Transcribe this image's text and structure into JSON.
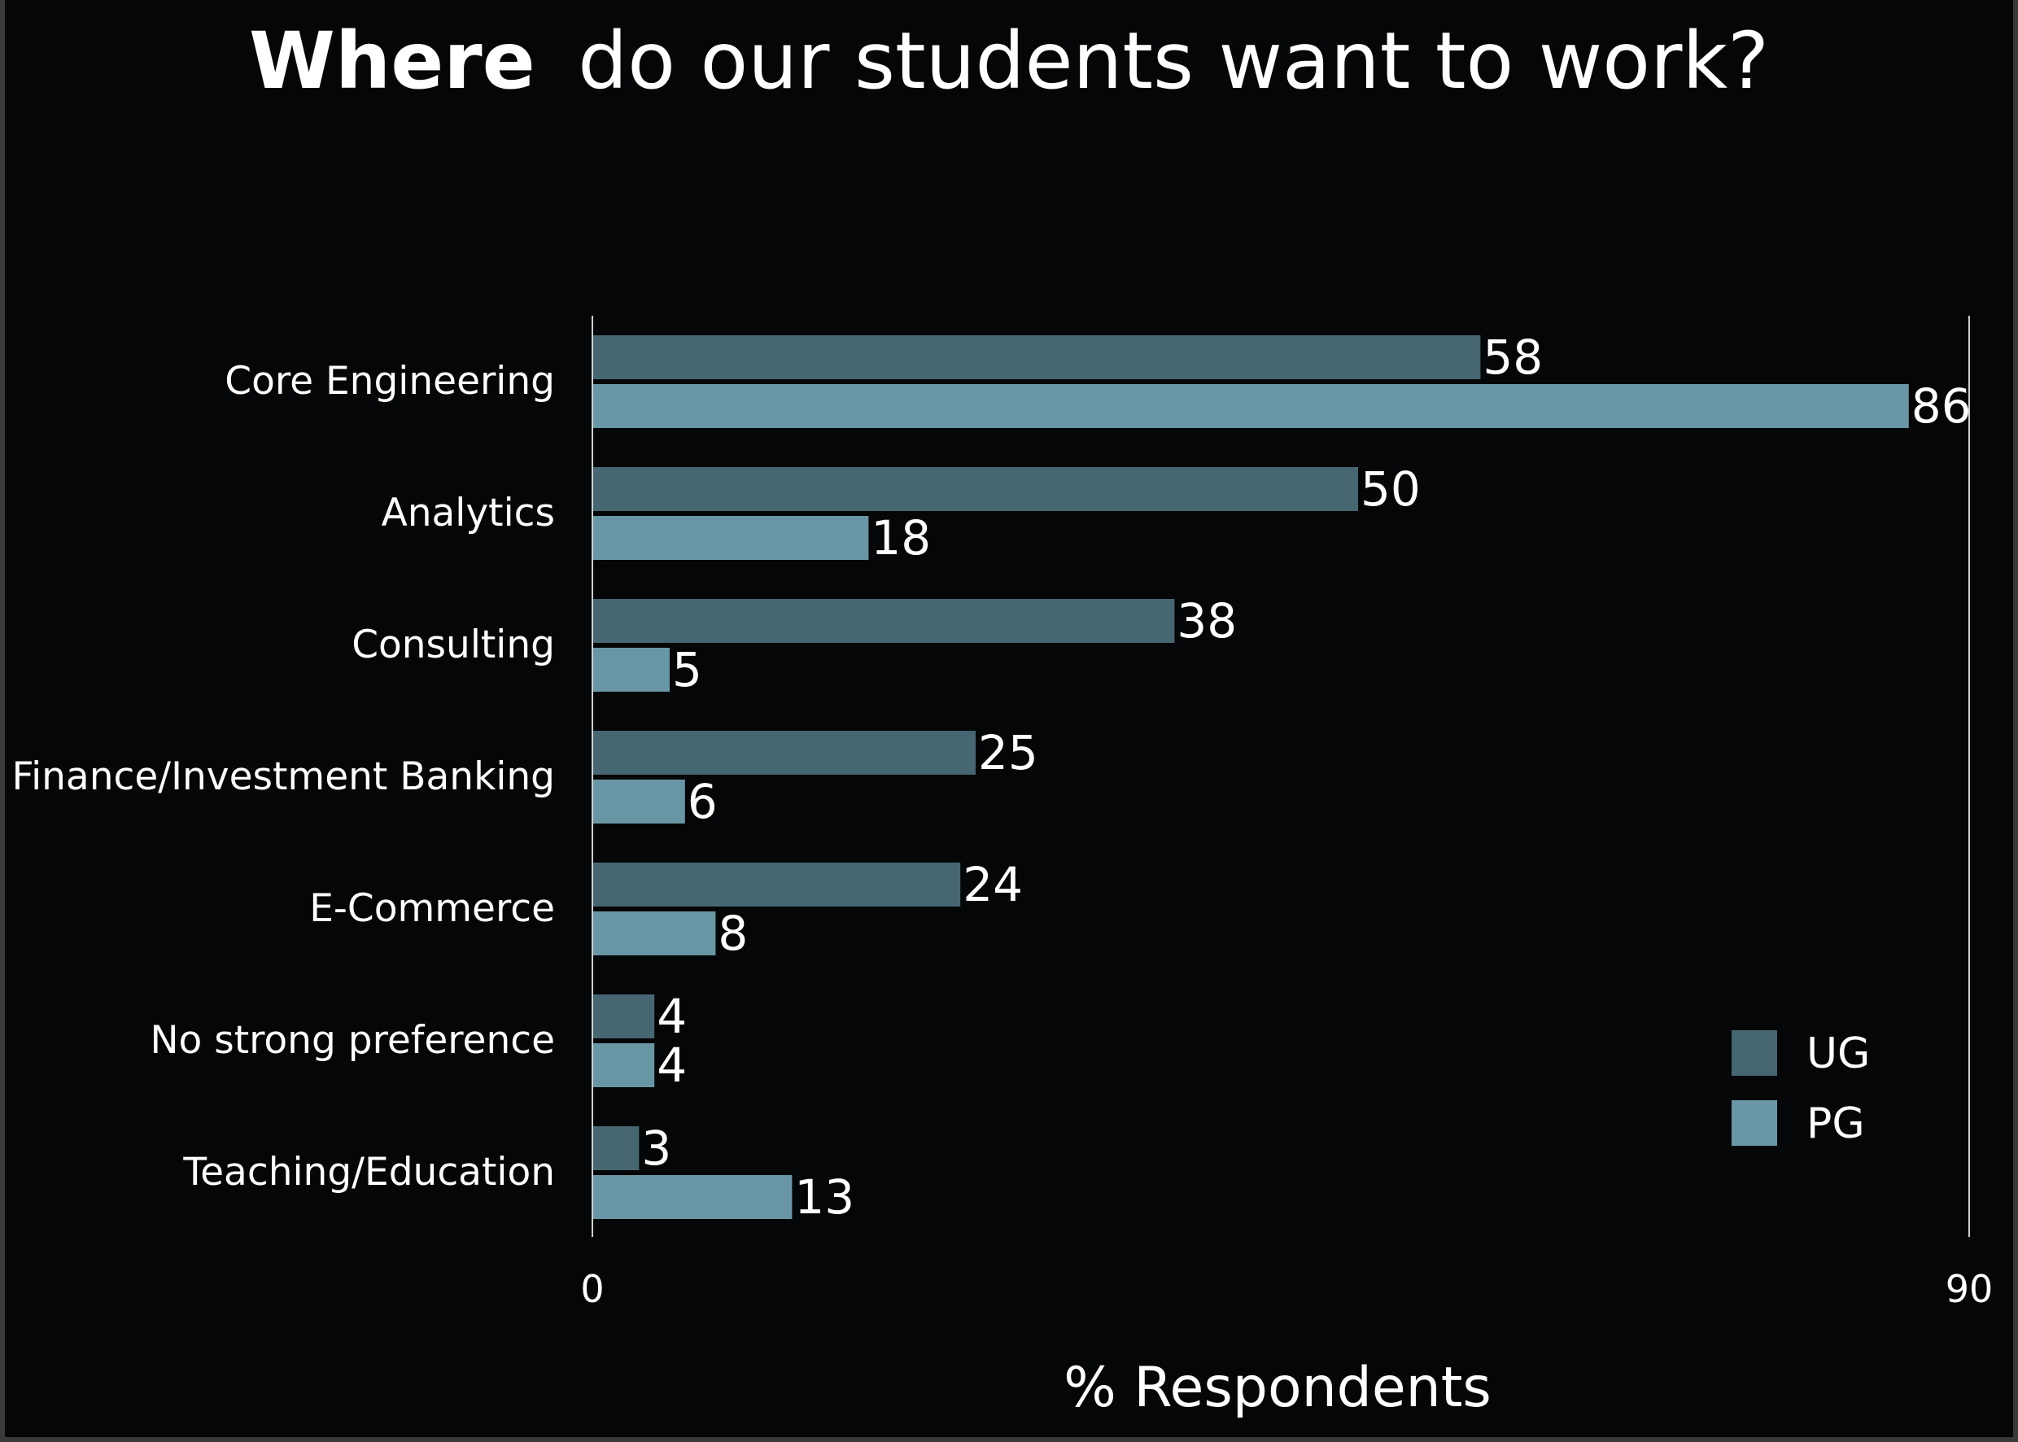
{
  "chart_data": {
    "type": "bar",
    "orientation": "horizontal",
    "title_bold": "Where",
    "title_rest": "do our students want to work?",
    "categories": [
      "Core Engineering",
      "Analytics",
      "Consulting",
      "Finance/Investment Banking",
      "E-Commerce",
      "No strong preference",
      "Teaching/Education"
    ],
    "series": [
      {
        "name": "UG",
        "color": "#466672",
        "values": [
          58,
          50,
          38,
          25,
          24,
          4,
          3
        ]
      },
      {
        "name": "PG",
        "color": "#6996a4",
        "values": [
          86,
          18,
          5,
          6,
          8,
          4,
          13
        ]
      }
    ],
    "xlabel": "% Respondents",
    "xlim": [
      0,
      90
    ],
    "xticks": [
      "0",
      "90"
    ],
    "grid": false,
    "legend_position": "bottom-right"
  }
}
